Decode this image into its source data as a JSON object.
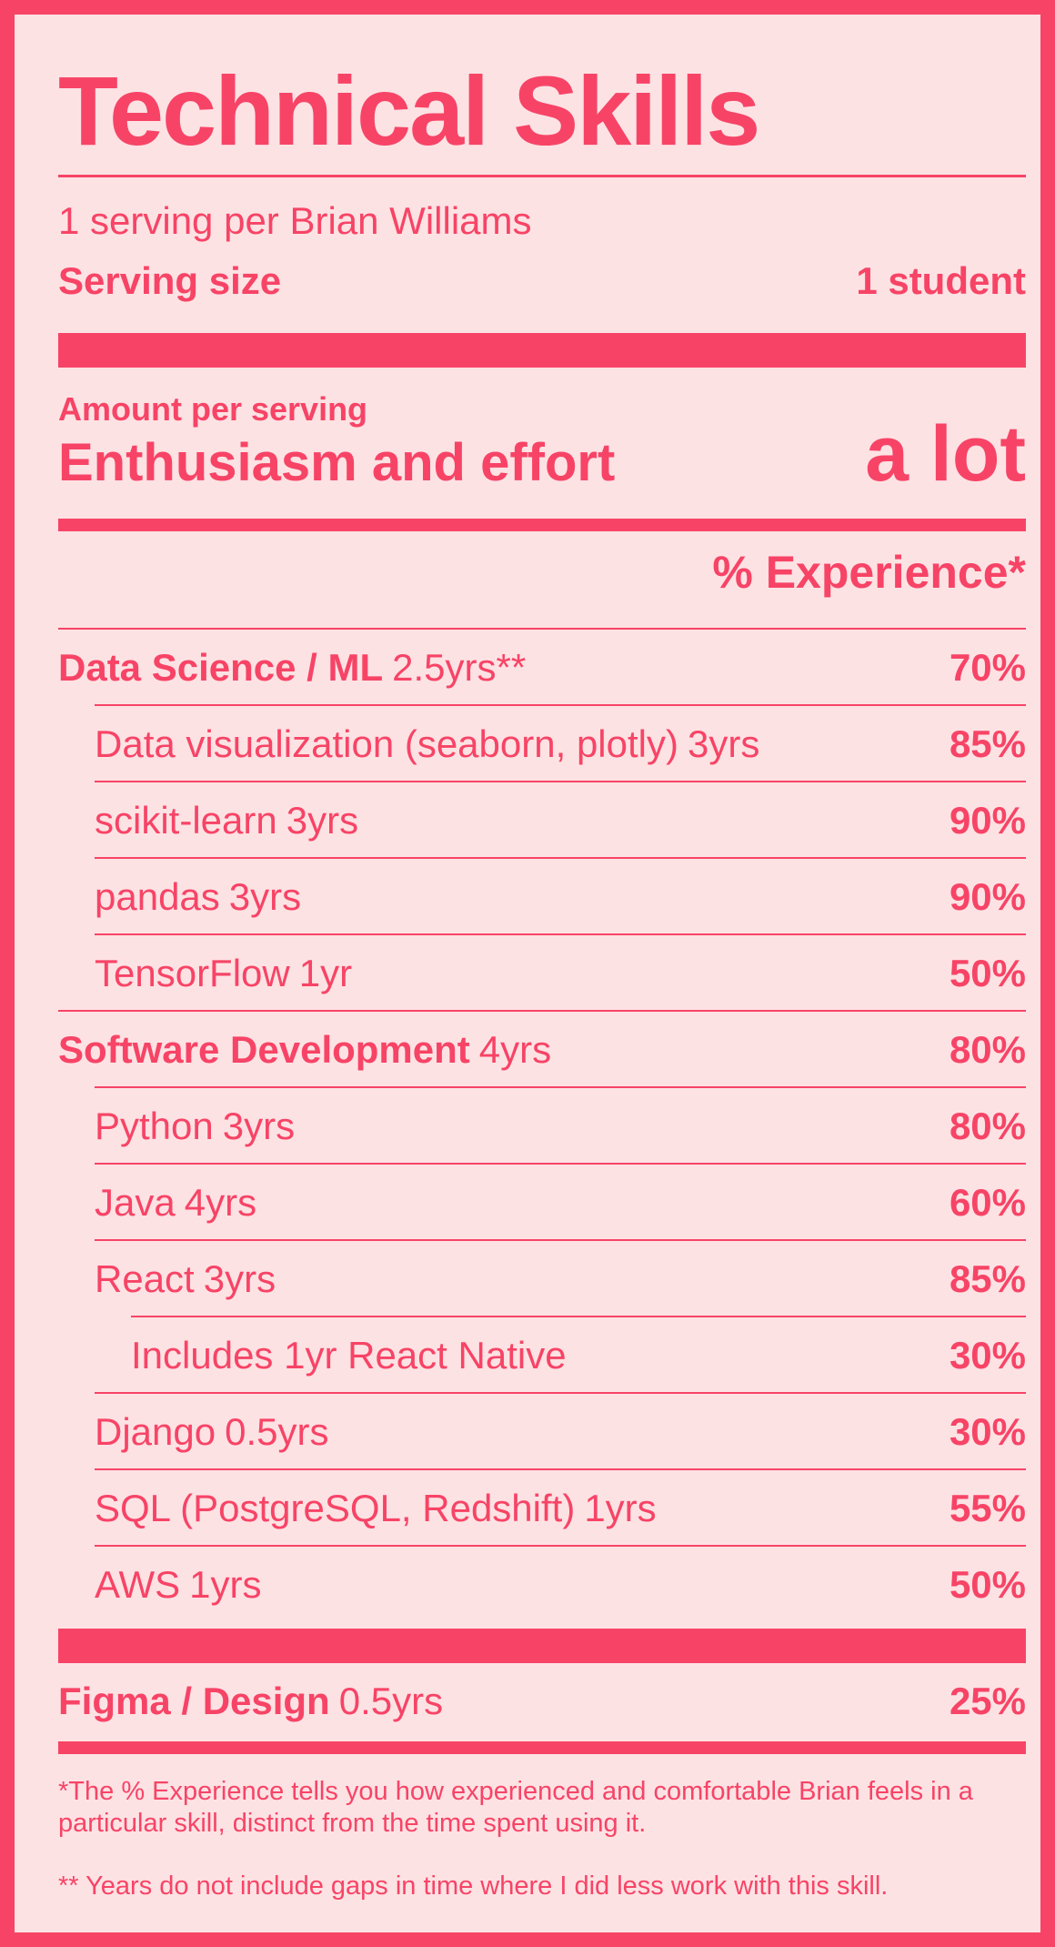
{
  "header": {
    "title": "Technical Skills",
    "servings": "1 serving per Brian Williams",
    "serving_size_label": "Serving size",
    "serving_size_value": "1 student"
  },
  "amount": {
    "label": "Amount per serving",
    "name": "Enthusiasm and effort",
    "value": "a lot"
  },
  "dv_header": "% Experience*",
  "rows": [
    {
      "name": "Data Science / ML",
      "years": "2.5yrs**",
      "pct": "70%",
      "level": 0,
      "bold": true
    },
    {
      "name": "Data visualization (seaborn, plotly)",
      "years": "3yrs",
      "pct": "85%",
      "level": 1,
      "bold": false
    },
    {
      "name": "scikit-learn",
      "years": "3yrs",
      "pct": "90%",
      "level": 1,
      "bold": false
    },
    {
      "name": "pandas",
      "years": "3yrs",
      "pct": "90%",
      "level": 1,
      "bold": false
    },
    {
      "name": "TensorFlow",
      "years": "1yr",
      "pct": "50%",
      "level": 1,
      "bold": false
    },
    {
      "name": "Software Development",
      "years": "4yrs",
      "pct": "80%",
      "level": 0,
      "bold": true
    },
    {
      "name": "Python",
      "years": "3yrs",
      "pct": "80%",
      "level": 1,
      "bold": false
    },
    {
      "name": "Java",
      "years": "4yrs",
      "pct": "60%",
      "level": 1,
      "bold": false
    },
    {
      "name": "React",
      "years": "3yrs",
      "pct": "85%",
      "level": 1,
      "bold": false
    },
    {
      "name": "Includes 1yr React Native",
      "years": "",
      "pct": "30%",
      "level": 2,
      "bold": false
    },
    {
      "name": "Django",
      "years": "0.5yrs",
      "pct": "30%",
      "level": 1,
      "bold": false
    },
    {
      "name": "SQL (PostgreSQL, Redshift)",
      "years": "1yrs",
      "pct": "55%",
      "level": 1,
      "bold": false
    },
    {
      "name": "AWS",
      "years": "1yrs",
      "pct": "50%",
      "level": 1,
      "bold": false
    }
  ],
  "extra_row": {
    "name": "Figma / Design",
    "years": "0.5yrs",
    "pct": "25%",
    "bold": true
  },
  "footnotes": {
    "note1": "*The % Experience tells you how experienced and comfortable Brian feels in a particular skill, distinct from the time spent using it.",
    "note2": "** Years do not include gaps in time where I did less work with this skill."
  }
}
